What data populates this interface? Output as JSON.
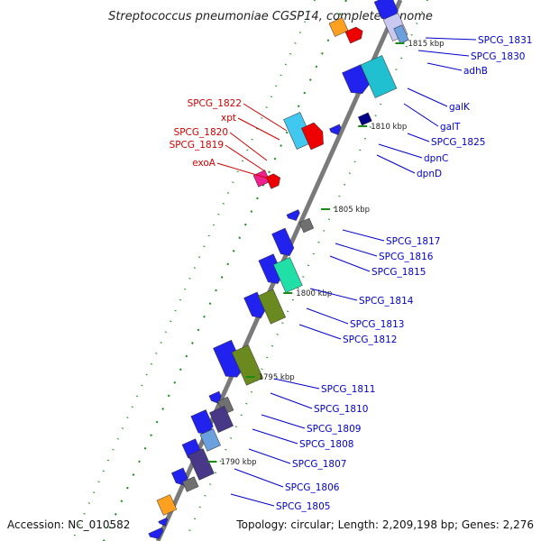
{
  "title": "Streptococcus pneumoniae CGSP14, complete genome",
  "footer": {
    "accession": "Accession: NC_010582",
    "stats": "Topology: circular; Length: 2,209,198 bp; Genes: 2,276"
  },
  "colors": {
    "forward_label": "#d00000",
    "reverse_label": "#0000cc",
    "axis": "#7a7a7a",
    "tick": "#1a8a1a"
  },
  "kbp_ticks": [
    "1815 kbp",
    "1810 kbp",
    "1805 kbp",
    "1800 kbp",
    "1795 kbp",
    "1790 kbp"
  ],
  "left_labels": [
    "SPCG_1822",
    "xpt",
    "SPCG_1820",
    "SPCG_1819",
    "exoA"
  ],
  "right_labels": [
    "SPCG_1831",
    "SPCG_1830",
    "adhB",
    "galK",
    "galT",
    "SPCG_1825",
    "dpnC",
    "dpnD",
    "SPCG_1817",
    "SPCG_1816",
    "SPCG_1815",
    "SPCG_1814",
    "SPCG_1813",
    "SPCG_1812",
    "SPCG_1811",
    "SPCG_1810",
    "SPCG_1809",
    "SPCG_1808",
    "SPCG_1807",
    "SPCG_1806",
    "SPCG_1805"
  ]
}
